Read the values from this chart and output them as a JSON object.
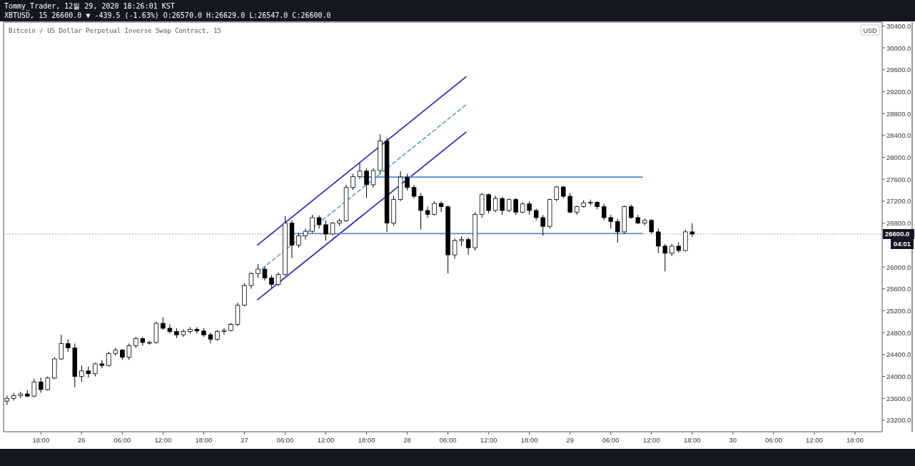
{
  "chart_data": {
    "type": "candlestick",
    "title": "Bitcoin / US Dollar Perpetual Inverse Swap Contract, 15",
    "subtitle": "Tommy_Trader, 12월 29, 2020 18:26:01 KST",
    "annotations": [
      "XBTUSD, 15 26600.0 ▼ -439.5 (-1.63%) O:26570.0 H:26629.0 L:26547.0 C:26600.0",
      "04:01"
    ],
    "ylabel": "USD",
    "xlim": [
      "2020-12-25T12:30",
      "2020-12-30T22:00"
    ],
    "ylim": [
      22990,
      30470
    ],
    "yticks": [
      {
        "value": 23200,
        "label": "23200.0"
      },
      {
        "value": 23600,
        "label": "23600.0"
      },
      {
        "value": 24000,
        "label": "24000.0"
      },
      {
        "value": 24400,
        "label": "24400.0"
      },
      {
        "value": 24800,
        "label": "24800.0"
      },
      {
        "value": 25200,
        "label": "25200.0"
      },
      {
        "value": 25600,
        "label": "25600.0"
      },
      {
        "value": 26000,
        "label": "26000.0"
      },
      {
        "value": 26800,
        "label": "26800.0"
      },
      {
        "value": 27200,
        "label": "27200.0"
      },
      {
        "value": 27600,
        "label": "27600.0"
      },
      {
        "value": 28000,
        "label": "28000.0"
      },
      {
        "value": 28400,
        "label": "28400.0"
      },
      {
        "value": 28800,
        "label": "28800.0"
      },
      {
        "value": 29200,
        "label": "29200.0"
      },
      {
        "value": 29600,
        "label": "29600.0"
      },
      {
        "value": 30000,
        "label": "30000.0"
      },
      {
        "value": 30400,
        "label": "30400.0"
      }
    ],
    "xticks": [
      {
        "value": "2020-12-25T18:00",
        "label": "18:00"
      },
      {
        "value": "2020-12-26T00:00",
        "label": "26"
      },
      {
        "value": "2020-12-26T06:00",
        "label": "06:00"
      },
      {
        "value": "2020-12-26T12:00",
        "label": "12:00"
      },
      {
        "value": "2020-12-26T18:00",
        "label": "18:00"
      },
      {
        "value": "2020-12-27T00:00",
        "label": "27"
      },
      {
        "value": "2020-12-27T06:00",
        "label": "06:00"
      },
      {
        "value": "2020-12-27T12:00",
        "label": "12:00"
      },
      {
        "value": "2020-12-27T18:00",
        "label": "18:00"
      },
      {
        "value": "2020-12-28T00:00",
        "label": "28"
      },
      {
        "value": "2020-12-28T06:00",
        "label": "06:00"
      },
      {
        "value": "2020-12-28T12:00",
        "label": "12:00"
      },
      {
        "value": "2020-12-28T18:00",
        "label": "18:00"
      },
      {
        "value": "2020-12-29T00:00",
        "label": "29"
      },
      {
        "value": "2020-12-29T06:00",
        "label": "06:00"
      },
      {
        "value": "2020-12-29T12:00",
        "label": "12:00"
      },
      {
        "value": "2020-12-29T18:00",
        "label": "18:00"
      },
      {
        "value": "2020-12-30T00:00",
        "label": "30"
      },
      {
        "value": "2020-12-30T06:00",
        "label": "06:00"
      },
      {
        "value": "2020-12-30T12:00",
        "label": "12:00"
      },
      {
        "value": "2020-12-30T18:00",
        "label": "18:00"
      }
    ],
    "x": [
      "2020-12-25T13:00",
      "2020-12-25T14:00",
      "2020-12-25T15:00",
      "2020-12-25T16:00",
      "2020-12-25T17:00",
      "2020-12-25T18:00",
      "2020-12-25T19:00",
      "2020-12-25T20:00",
      "2020-12-25T21:00",
      "2020-12-25T22:00",
      "2020-12-25T23:00",
      "2020-12-26T00:00",
      "2020-12-26T01:00",
      "2020-12-26T02:00",
      "2020-12-26T03:00",
      "2020-12-26T04:00",
      "2020-12-26T05:00",
      "2020-12-26T06:00",
      "2020-12-26T07:00",
      "2020-12-26T08:00",
      "2020-12-26T09:00",
      "2020-12-26T10:00",
      "2020-12-26T11:00",
      "2020-12-26T12:00",
      "2020-12-26T13:00",
      "2020-12-26T14:00",
      "2020-12-26T15:00",
      "2020-12-26T16:00",
      "2020-12-26T17:00",
      "2020-12-26T18:00",
      "2020-12-26T19:00",
      "2020-12-26T20:00",
      "2020-12-26T21:00",
      "2020-12-26T22:00",
      "2020-12-26T23:00",
      "2020-12-27T00:00",
      "2020-12-27T01:00",
      "2020-12-27T02:00",
      "2020-12-27T03:00",
      "2020-12-27T04:00",
      "2020-12-27T05:00",
      "2020-12-27T06:00",
      "2020-12-27T07:00",
      "2020-12-27T08:00",
      "2020-12-27T09:00",
      "2020-12-27T10:00",
      "2020-12-27T11:00",
      "2020-12-27T12:00",
      "2020-12-27T13:00",
      "2020-12-27T14:00",
      "2020-12-27T15:00",
      "2020-12-27T16:00",
      "2020-12-27T17:00",
      "2020-12-27T18:00",
      "2020-12-27T19:00",
      "2020-12-27T20:00",
      "2020-12-27T21:00",
      "2020-12-27T22:00",
      "2020-12-27T23:00",
      "2020-12-28T00:00",
      "2020-12-28T01:00",
      "2020-12-28T02:00",
      "2020-12-28T03:00",
      "2020-12-28T04:00",
      "2020-12-28T05:00",
      "2020-12-28T06:00",
      "2020-12-28T07:00",
      "2020-12-28T08:00",
      "2020-12-28T09:00",
      "2020-12-28T10:00",
      "2020-12-28T11:00",
      "2020-12-28T12:00",
      "2020-12-28T13:00",
      "2020-12-28T14:00",
      "2020-12-28T15:00",
      "2020-12-28T16:00",
      "2020-12-28T17:00",
      "2020-12-28T18:00",
      "2020-12-28T19:00",
      "2020-12-28T20:00",
      "2020-12-28T21:00",
      "2020-12-28T22:00",
      "2020-12-28T23:00",
      "2020-12-29T00:00",
      "2020-12-29T01:00",
      "2020-12-29T02:00",
      "2020-12-29T03:00",
      "2020-12-29T04:00",
      "2020-12-29T05:00",
      "2020-12-29T06:00",
      "2020-12-29T07:00",
      "2020-12-29T08:00",
      "2020-12-29T09:00",
      "2020-12-29T10:00",
      "2020-12-29T11:00",
      "2020-12-29T12:00",
      "2020-12-29T13:00",
      "2020-12-29T14:00",
      "2020-12-29T15:00",
      "2020-12-29T16:00",
      "2020-12-29T17:00",
      "2020-12-29T18:00"
    ],
    "ohlc": [
      [
        23550,
        23650,
        23480,
        23600
      ],
      [
        23600,
        23700,
        23560,
        23650
      ],
      [
        23650,
        23720,
        23600,
        23680
      ],
      [
        23680,
        23750,
        23620,
        23640
      ],
      [
        23640,
        23960,
        23620,
        23900
      ],
      [
        23900,
        23980,
        23700,
        23760
      ],
      [
        23760,
        24000,
        23740,
        23970
      ],
      [
        23970,
        24350,
        23950,
        24320
      ],
      [
        24320,
        24760,
        24300,
        24600
      ],
      [
        24600,
        24680,
        24450,
        24520
      ],
      [
        24520,
        24600,
        23800,
        24000
      ],
      [
        24000,
        24200,
        23900,
        24100
      ],
      [
        24100,
        24180,
        23980,
        24050
      ],
      [
        24050,
        24250,
        24000,
        24230
      ],
      [
        24230,
        24300,
        24150,
        24200
      ],
      [
        24200,
        24450,
        24180,
        24420
      ],
      [
        24420,
        24520,
        24380,
        24480
      ],
      [
        24480,
        24500,
        24300,
        24350
      ],
      [
        24350,
        24600,
        24300,
        24560
      ],
      [
        24560,
        24720,
        24520,
        24690
      ],
      [
        24690,
        24720,
        24560,
        24620
      ],
      [
        24620,
        24650,
        24580,
        24620
      ],
      [
        24620,
        25000,
        24600,
        24970
      ],
      [
        24970,
        25080,
        24850,
        24880
      ],
      [
        24880,
        24950,
        24780,
        24820
      ],
      [
        24820,
        24880,
        24700,
        24760
      ],
      [
        24760,
        24860,
        24720,
        24820
      ],
      [
        24820,
        24900,
        24780,
        24860
      ],
      [
        24860,
        24900,
        24780,
        24830
      ],
      [
        24830,
        24880,
        24720,
        24760
      ],
      [
        24760,
        24800,
        24600,
        24680
      ],
      [
        24680,
        24850,
        24650,
        24820
      ],
      [
        24820,
        24880,
        24760,
        24840
      ],
      [
        24840,
        24980,
        24820,
        24950
      ],
      [
        24950,
        25350,
        24920,
        25300
      ],
      [
        25300,
        25700,
        25280,
        25660
      ],
      [
        25660,
        25900,
        25600,
        25880
      ],
      [
        25880,
        26050,
        25800,
        25960
      ],
      [
        25960,
        26000,
        25750,
        25800
      ],
      [
        25800,
        25850,
        25620,
        25680
      ],
      [
        25680,
        25900,
        25650,
        25860
      ],
      [
        25860,
        26930,
        25840,
        26800
      ],
      [
        26800,
        26850,
        26160,
        26400
      ],
      [
        26400,
        26620,
        26350,
        26570
      ],
      [
        26570,
        26700,
        26500,
        26650
      ],
      [
        26650,
        26950,
        26620,
        26900
      ],
      [
        26900,
        26940,
        26700,
        26770
      ],
      [
        26770,
        26850,
        26480,
        26600
      ],
      [
        26600,
        26820,
        26580,
        26800
      ],
      [
        26800,
        26880,
        26750,
        26840
      ],
      [
        26840,
        27500,
        26820,
        27450
      ],
      [
        27450,
        27700,
        27400,
        27650
      ],
      [
        27650,
        27900,
        27600,
        27750
      ],
      [
        27750,
        27800,
        27260,
        27500
      ],
      [
        27500,
        27800,
        27450,
        27760
      ],
      [
        27760,
        28420,
        27700,
        28300
      ],
      [
        28300,
        28350,
        26640,
        26800
      ],
      [
        26800,
        27300,
        26750,
        27230
      ],
      [
        27230,
        27750,
        27200,
        27640
      ],
      [
        27640,
        27700,
        27400,
        27450
      ],
      [
        27450,
        27500,
        27250,
        27290
      ],
      [
        27290,
        27350,
        26680,
        27030
      ],
      [
        27030,
        27100,
        26900,
        26960
      ],
      [
        26960,
        27200,
        26940,
        27160
      ],
      [
        27160,
        27200,
        27000,
        27100
      ],
      [
        27100,
        27120,
        25880,
        26220
      ],
      [
        26220,
        26520,
        26150,
        26480
      ],
      [
        26480,
        26560,
        26380,
        26500
      ],
      [
        26500,
        26540,
        26220,
        26350
      ],
      [
        26350,
        27000,
        26300,
        26960
      ],
      [
        26960,
        27350,
        26900,
        27320
      ],
      [
        27320,
        27340,
        26980,
        27030
      ],
      [
        27030,
        27300,
        27000,
        27250
      ],
      [
        27250,
        27280,
        26950,
        27030
      ],
      [
        27030,
        27250,
        27000,
        27230
      ],
      [
        27230,
        27260,
        26950,
        27000
      ],
      [
        27000,
        27180,
        26980,
        27150
      ],
      [
        27150,
        27200,
        26950,
        27030
      ],
      [
        27030,
        27060,
        26850,
        26900
      ],
      [
        26900,
        26950,
        26570,
        26740
      ],
      [
        26740,
        27250,
        26700,
        27230
      ],
      [
        27230,
        27480,
        27200,
        27460
      ],
      [
        27460,
        27480,
        27250,
        27290
      ],
      [
        27290,
        27350,
        26980,
        27000
      ],
      [
        27000,
        27120,
        26950,
        27100
      ],
      [
        27100,
        27220,
        27080,
        27170
      ],
      [
        27170,
        27230,
        27120,
        27180
      ],
      [
        27180,
        27200,
        27050,
        27100
      ],
      [
        27100,
        27150,
        26850,
        26900
      ],
      [
        26900,
        26950,
        26700,
        26830
      ],
      [
        26830,
        26880,
        26440,
        26640
      ],
      [
        26640,
        27120,
        26600,
        27100
      ],
      [
        27100,
        27140,
        26880,
        26900
      ],
      [
        26900,
        26950,
        26780,
        26800
      ],
      [
        26800,
        26880,
        26760,
        26850
      ],
      [
        26850,
        26870,
        26600,
        26640
      ],
      [
        26640,
        26700,
        26250,
        26380
      ],
      [
        26380,
        26420,
        25920,
        26250
      ],
      [
        26250,
        26420,
        26200,
        26380
      ],
      [
        26380,
        26450,
        26260,
        26300
      ],
      [
        26300,
        26680,
        26280,
        26640
      ],
      [
        26640,
        26800,
        26547,
        26600
      ]
    ],
    "series": [
      {
        "type": "line",
        "color": "#1f1fc4",
        "line_style": "solid",
        "x": [
          "2020-12-27T01:55",
          "2020-12-28T08:40"
        ],
        "values": [
          26400,
          29470
        ]
      },
      {
        "type": "line",
        "color": "#5b9bd5",
        "line_style": "dashed",
        "x": [
          "2020-12-27T01:55",
          "2020-12-28T08:40"
        ],
        "values": [
          25900,
          28960
        ]
      },
      {
        "type": "line",
        "color": "#1f1fc4",
        "line_style": "solid",
        "x": [
          "2020-12-27T01:55",
          "2020-12-28T08:40"
        ],
        "values": [
          25400,
          28460
        ]
      },
      {
        "type": "line",
        "color": "#4a86d4",
        "line_style": "solid",
        "x": [
          "2020-12-27T17:25",
          "2020-12-29T10:40"
        ],
        "values": [
          27640,
          27640
        ]
      },
      {
        "type": "line",
        "color": "#4a86d4",
        "line_style": "solid",
        "x": [
          "2020-12-27T07:00",
          "2020-12-29T10:40"
        ],
        "values": [
          26610,
          26610
        ]
      }
    ],
    "ref_lines": [
      {
        "axis": "y",
        "value": 26600,
        "label": "26600.0",
        "color": "#888888",
        "line_style": "dotted"
      }
    ]
  }
}
